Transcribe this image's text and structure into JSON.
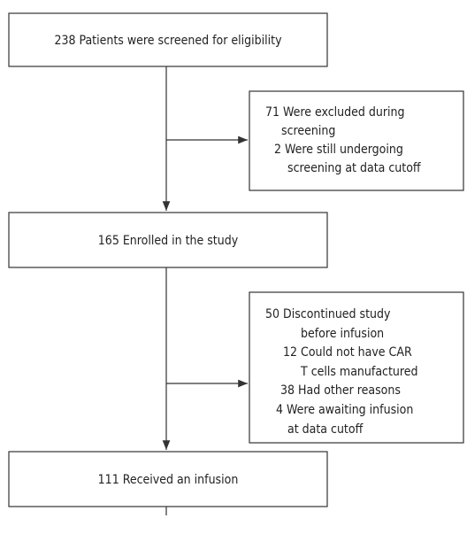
{
  "nodes": [
    {
      "lines": [
        "238 Patients were screened for eligibility"
      ]
    },
    {
      "lines": [
        "71 Were excluded during",
        "screening",
        "2 Were still undergoing",
        "screening at data cutoff"
      ]
    },
    {
      "lines": [
        "165 Enrolled in the study"
      ]
    },
    {
      "lines": [
        "50 Discontinued study",
        "before infusion",
        "12 Could not have CAR",
        "T cells manufactured",
        "38 Had other reasons",
        "4 Were awaiting infusion",
        "at data cutoff"
      ]
    },
    {
      "lines": [
        "111 Received an infusion"
      ]
    }
  ]
}
